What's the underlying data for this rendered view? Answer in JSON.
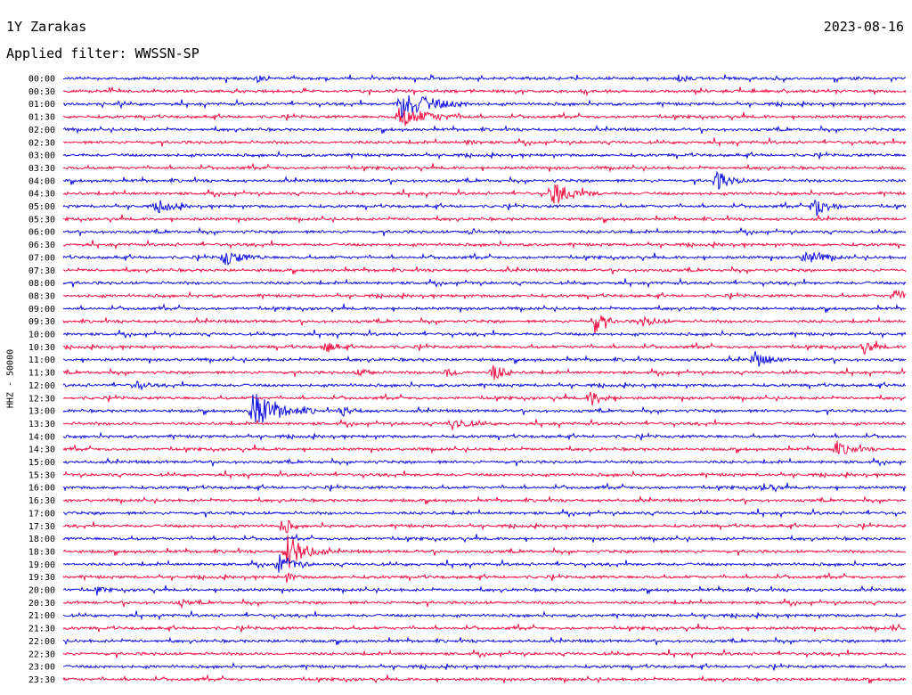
{
  "header": {
    "station": "1Y Zarakas",
    "date": "2023-08-16",
    "filter": "Applied filter: WWSSN-SP"
  },
  "chart_data": {
    "type": "line",
    "ylabel": "HHZ - 50000",
    "colors": [
      "#1010dd",
      "#ee1144"
    ],
    "times": [
      "00:00",
      "00:30",
      "01:00",
      "01:30",
      "02:00",
      "02:30",
      "03:00",
      "03:30",
      "04:00",
      "04:30",
      "05:00",
      "05:30",
      "06:00",
      "06:30",
      "07:00",
      "07:30",
      "08:00",
      "08:30",
      "09:00",
      "09:30",
      "10:00",
      "10:30",
      "11:00",
      "11:30",
      "12:00",
      "12:30",
      "13:00",
      "13:30",
      "14:00",
      "14:30",
      "15:00",
      "15:30",
      "16:00",
      "16:30",
      "17:00",
      "17:30",
      "18:00",
      "18:30",
      "19:00",
      "19:30",
      "20:00",
      "20:30",
      "21:00",
      "21:30",
      "22:00",
      "22:30",
      "23:00",
      "23:30"
    ],
    "events": [
      {
        "trace": 0,
        "pos": 0.23,
        "amp": 4,
        "dur": 0.03
      },
      {
        "trace": 0,
        "pos": 0.73,
        "amp": 4,
        "dur": 0.03
      },
      {
        "trace": 2,
        "pos": 0.398,
        "amp": 18,
        "dur": 0.09
      },
      {
        "trace": 3,
        "pos": 0.398,
        "amp": 12,
        "dur": 0.09
      },
      {
        "trace": 5,
        "pos": 0.48,
        "amp": 4,
        "dur": 0.02
      },
      {
        "trace": 8,
        "pos": 0.775,
        "amp": 12,
        "dur": 0.04
      },
      {
        "trace": 9,
        "pos": 0.58,
        "amp": 14,
        "dur": 0.06
      },
      {
        "trace": 10,
        "pos": 0.11,
        "amp": 8,
        "dur": 0.04
      },
      {
        "trace": 10,
        "pos": 0.89,
        "amp": 14,
        "dur": 0.04
      },
      {
        "trace": 12,
        "pos": 0.48,
        "amp": 5,
        "dur": 0.02
      },
      {
        "trace": 14,
        "pos": 0.19,
        "amp": 10,
        "dur": 0.05
      },
      {
        "trace": 14,
        "pos": 0.88,
        "amp": 9,
        "dur": 0.05
      },
      {
        "trace": 17,
        "pos": 0.985,
        "amp": 8,
        "dur": 0.03
      },
      {
        "trace": 19,
        "pos": 0.63,
        "amp": 14,
        "dur": 0.03
      },
      {
        "trace": 19,
        "pos": 0.685,
        "amp": 7,
        "dur": 0.04
      },
      {
        "trace": 21,
        "pos": 0.31,
        "amp": 8,
        "dur": 0.03
      },
      {
        "trace": 21,
        "pos": 0.95,
        "amp": 8,
        "dur": 0.03
      },
      {
        "trace": 22,
        "pos": 0.82,
        "amp": 10,
        "dur": 0.04
      },
      {
        "trace": 23,
        "pos": 0.35,
        "amp": 6,
        "dur": 0.03
      },
      {
        "trace": 23,
        "pos": 0.455,
        "amp": 6,
        "dur": 0.03
      },
      {
        "trace": 23,
        "pos": 0.51,
        "amp": 12,
        "dur": 0.03
      },
      {
        "trace": 24,
        "pos": 0.085,
        "amp": 5,
        "dur": 0.03
      },
      {
        "trace": 25,
        "pos": 0.625,
        "amp": 9,
        "dur": 0.04
      },
      {
        "trace": 26,
        "pos": 0.222,
        "amp": 22,
        "dur": 0.08
      },
      {
        "trace": 26,
        "pos": 0.33,
        "amp": 5,
        "dur": 0.04
      },
      {
        "trace": 27,
        "pos": 0.46,
        "amp": 9,
        "dur": 0.04
      },
      {
        "trace": 29,
        "pos": 0.915,
        "amp": 8,
        "dur": 0.05
      },
      {
        "trace": 32,
        "pos": 0.83,
        "amp": 6,
        "dur": 0.03
      },
      {
        "trace": 35,
        "pos": 0.26,
        "amp": 15,
        "dur": 0.02
      },
      {
        "trace": 37,
        "pos": 0.265,
        "amp": 22,
        "dur": 0.05
      },
      {
        "trace": 38,
        "pos": 0.255,
        "amp": 12,
        "dur": 0.04
      },
      {
        "trace": 39,
        "pos": 0.265,
        "amp": 6,
        "dur": 0.02
      },
      {
        "trace": 40,
        "pos": 0.04,
        "amp": 4,
        "dur": 0.02
      },
      {
        "trace": 41,
        "pos": 0.14,
        "amp": 4,
        "dur": 0.02
      },
      {
        "trace": 43,
        "pos": 0.985,
        "amp": 4,
        "dur": 0.02
      }
    ]
  }
}
